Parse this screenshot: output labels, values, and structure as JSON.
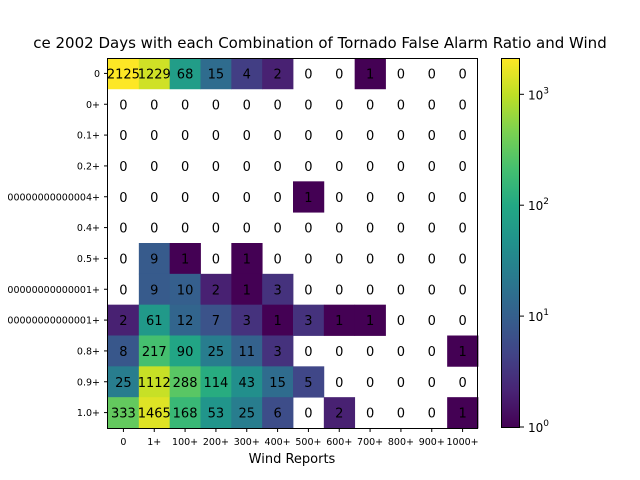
{
  "chart_data": {
    "type": "heatmap",
    "title": "ce 2002 Days with each Combination of Tornado False Alarm Ratio and Wind",
    "xlabel": "Wind Reports",
    "ylabel": "",
    "x_categories": [
      "0",
      "1+",
      "100+",
      "200+",
      "300+",
      "400+",
      "500+",
      "600+",
      "700+",
      "800+",
      "900+",
      "1000+"
    ],
    "y_categories": [
      "0",
      "0+",
      "0.1+",
      "0.2+",
      "00000000000004+",
      "0.4+",
      "0.5+",
      "00000000000001+",
      "00000000000001+",
      "0.8+",
      "0.9+",
      "1.0+"
    ],
    "values": [
      [
        2125,
        1229,
        68,
        15,
        4,
        2,
        0,
        0,
        1,
        0,
        0,
        0
      ],
      [
        0,
        0,
        0,
        0,
        0,
        0,
        0,
        0,
        0,
        0,
        0,
        0
      ],
      [
        0,
        0,
        0,
        0,
        0,
        0,
        0,
        0,
        0,
        0,
        0,
        0
      ],
      [
        0,
        0,
        0,
        0,
        0,
        0,
        0,
        0,
        0,
        0,
        0,
        0
      ],
      [
        0,
        0,
        0,
        0,
        0,
        0,
        1,
        0,
        0,
        0,
        0,
        0
      ],
      [
        0,
        0,
        0,
        0,
        0,
        0,
        0,
        0,
        0,
        0,
        0,
        0
      ],
      [
        0,
        9,
        1,
        0,
        1,
        0,
        0,
        0,
        0,
        0,
        0,
        0
      ],
      [
        0,
        9,
        10,
        2,
        1,
        3,
        0,
        0,
        0,
        0,
        0,
        0
      ],
      [
        2,
        61,
        12,
        7,
        3,
        1,
        3,
        1,
        1,
        0,
        0,
        0
      ],
      [
        8,
        217,
        90,
        25,
        11,
        3,
        0,
        0,
        0,
        0,
        0,
        1
      ],
      [
        25,
        1112,
        288,
        114,
        43,
        15,
        5,
        0,
        0,
        0,
        0,
        0
      ],
      [
        333,
        1465,
        168,
        53,
        25,
        6,
        0,
        2,
        0,
        0,
        0,
        1
      ]
    ],
    "color_scale": "log",
    "colormap": "viridis",
    "vmin": 1,
    "vmax": 2125,
    "zero_color": "#ffffff",
    "colorbar_ticks": [
      {
        "base": "10",
        "exp": "0",
        "value": 1
      },
      {
        "base": "10",
        "exp": "1",
        "value": 10
      },
      {
        "base": "10",
        "exp": "2",
        "value": 100
      },
      {
        "base": "10",
        "exp": "3",
        "value": 1000
      }
    ]
  }
}
